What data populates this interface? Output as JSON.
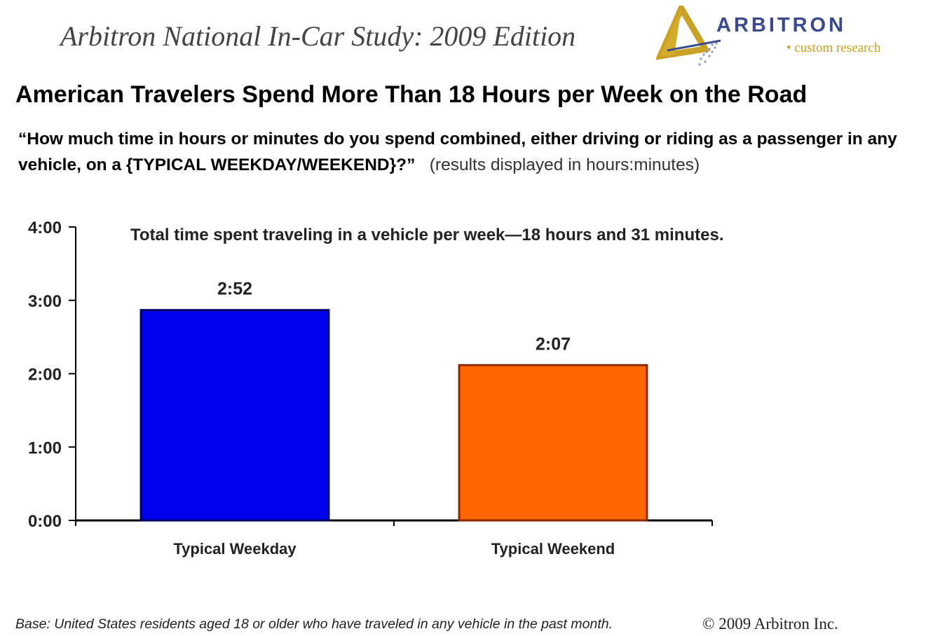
{
  "header": {
    "study_title": "Arbitron National In-Car Study: 2009 Edition",
    "logo_name": "ARBITRON",
    "logo_tagline": "• custom research",
    "logo_icon": "triangle-logo-icon"
  },
  "headline": "American Travelers Spend More Than 18 Hours per Week on the Road",
  "question": {
    "text": "“How much time in hours or minutes do you spend combined, either driving or riding as a passenger in any vehicle, on a {TYPICAL WEEKDAY/WEEKEND}?”",
    "note": "(results displayed in hours:minutes)"
  },
  "chart_data": {
    "type": "bar",
    "annotation": "Total time spent traveling in a vehicle per week—18 hours and 31 minutes.",
    "categories": [
      "Typical Weekday",
      "Typical Weekend"
    ],
    "values_minutes": [
      172,
      127
    ],
    "data_labels": [
      "2:52",
      "2:07"
    ],
    "bar_colors": [
      "#0000ee",
      "#ff6600"
    ],
    "bar_border_colors": [
      "#000066",
      "#8a2a00"
    ],
    "y_ticks_minutes": [
      0,
      60,
      120,
      180,
      240
    ],
    "y_tick_labels": [
      "0:00",
      "1:00",
      "2:00",
      "3:00",
      "4:00"
    ],
    "ylim_minutes": [
      0,
      240
    ],
    "grid": false,
    "legend": "none"
  },
  "footer": {
    "base": "Base:  United States residents aged 18 or older who have traveled in any vehicle in the past month.",
    "copyright": "© 2009 Arbitron Inc."
  }
}
